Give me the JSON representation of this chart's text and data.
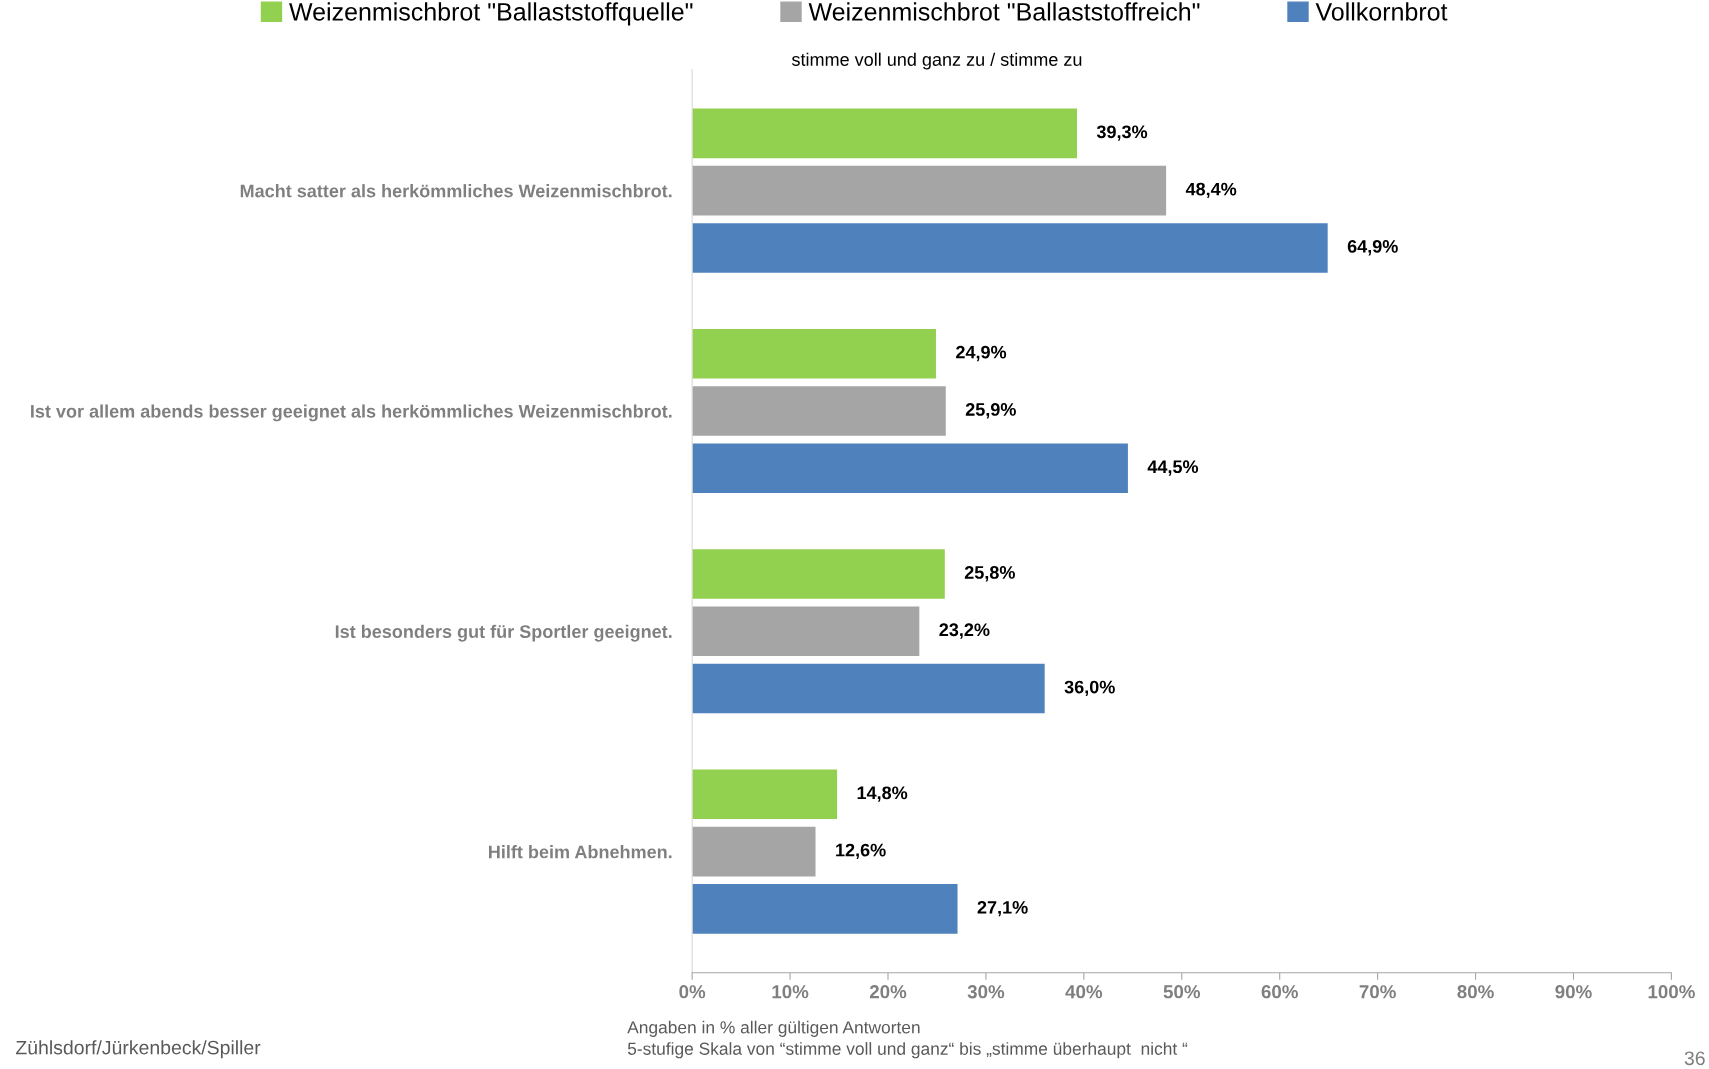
{
  "chart_data": {
    "type": "bar",
    "orientation": "horizontal",
    "subtitle": "stimme voll und ganz zu / stimme zu",
    "categories": [
      "Macht satter als herkömmliches Weizenmischbrot.",
      "Ist vor allem abends besser geeignet als herkömmliches Weizenmischbrot.",
      "Ist besonders gut für Sportler geeignet.",
      "Hilft beim Abnehmen."
    ],
    "series": [
      {
        "name": "Weizenmischbrot \"Ballaststoffquelle\"",
        "color": "#92d050",
        "values": [
          39.3,
          24.9,
          25.8,
          14.8
        ],
        "value_labels": [
          "39,3%",
          "24,9%",
          "25,8%",
          "14,8%"
        ]
      },
      {
        "name": "Weizenmischbrot \"Ballaststoffreich\"",
        "color": "#a5a5a5",
        "values": [
          48.4,
          25.9,
          23.2,
          12.6
        ],
        "value_labels": [
          "48,4%",
          "25,9%",
          "23,2%",
          "12,6%"
        ]
      },
      {
        "name": "Vollkornbrot",
        "color": "#4f81bd",
        "values": [
          64.9,
          44.5,
          36.0,
          27.1
        ],
        "value_labels": [
          "64,9%",
          "44,5%",
          "36,0%",
          "27,1%"
        ]
      }
    ],
    "xlim": [
      0,
      100
    ],
    "xticks": [
      {
        "value": 0,
        "label": "0%"
      },
      {
        "value": 10,
        "label": "10%"
      },
      {
        "value": 20,
        "label": "20%"
      },
      {
        "value": 30,
        "label": "30%"
      },
      {
        "value": 40,
        "label": "40%"
      },
      {
        "value": 50,
        "label": "50%"
      },
      {
        "value": 60,
        "label": "60%"
      },
      {
        "value": 70,
        "label": "70%"
      },
      {
        "value": 80,
        "label": "80%"
      },
      {
        "value": 90,
        "label": "90%"
      },
      {
        "value": 100,
        "label": "100%"
      }
    ],
    "legend": "top",
    "grid": false,
    "annotations": [
      "Angaben in % aller gültigen Antworten",
      "5-stufige Skala von “stimme voll und ganz“ bis „stimme überhaupt  nicht “",
      "Zühlsdorf/Jürkenbeck/Spiller",
      "36"
    ]
  }
}
